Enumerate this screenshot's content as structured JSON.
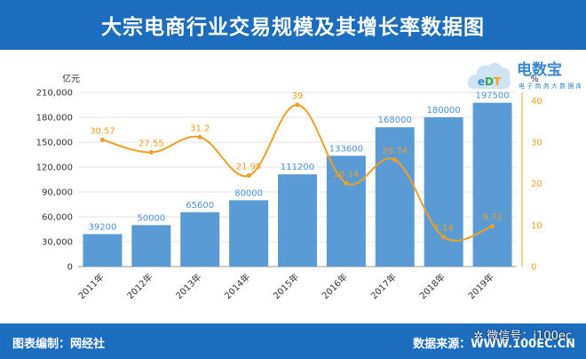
{
  "header": {
    "title": "大宗电商行业交易规模及其增长率数据图"
  },
  "footer": {
    "compiled_by": "图表编制：网经社",
    "source": "数据来源：WWW.100EC.CN",
    "wechat": "微信号：i100ec"
  },
  "logo": {
    "text": "电数宝",
    "subtext": "电子商务大数据库",
    "mark": "EDT"
  },
  "colors": {
    "header_bg": "#1d6dbf",
    "bar": "#5b9bd5",
    "line": "#f0a020",
    "bar_label": "#4a90d9"
  },
  "chart_data": {
    "type": "bar",
    "categories": [
      "2011年",
      "2012年",
      "2013年",
      "2014年",
      "2015年",
      "2016年",
      "2017年",
      "2018年",
      "2019年"
    ],
    "series": [
      {
        "values": [
          39200,
          50000,
          65600,
          80000,
          111200,
          133600,
          168000,
          180000,
          197500
        ],
        "axis": "left",
        "kind": "bar"
      },
      {
        "values": [
          30.57,
          27.55,
          31.2,
          21.95,
          39,
          20.14,
          25.74,
          7.14,
          9.72
        ],
        "axis": "right",
        "kind": "line"
      }
    ],
    "y_left": {
      "unit": "亿元",
      "ylim": [
        0,
        210000
      ],
      "ticks": [
        "0",
        "30,000",
        "60,000",
        "90,000",
        "120,000",
        "150,000",
        "180,000",
        "210,000"
      ]
    },
    "y_right": {
      "unit": "%",
      "ylim": [
        0,
        42
      ],
      "ticks": [
        "0",
        "10",
        "20",
        "30",
        "40"
      ]
    },
    "bar_labels": [
      "39200",
      "50000",
      "65600",
      "80000",
      "111200",
      "133600",
      "168000",
      "180000",
      "197500"
    ],
    "line_labels": [
      "30.57",
      "27.55",
      "31.2",
      "21.95",
      "39",
      "20.14",
      "25.74",
      "7.14",
      "9.72"
    ],
    "grid": true,
    "legend": "none"
  }
}
